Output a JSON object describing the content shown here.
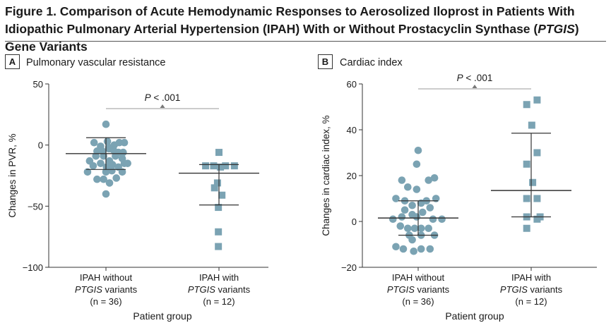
{
  "figure": {
    "title_part1": "Figure 1. Comparison of Acute Hemodynamic Responses to Aerosolized Iloprost in Patients With Idiopathic Pulmonary Arterial Hypertension (IPAH) With or Without Prostacyclin Synthase (",
    "title_italic": "PTGIS",
    "title_part2": ") Gene Variants"
  },
  "chart_data": [
    {
      "panel_letter": "A",
      "type": "scatter",
      "title": "Pulmonary vascular resistance",
      "ylabel": "Changes in PVR, %",
      "xlabel": "Patient group",
      "ylim": [
        -100,
        50
      ],
      "yticks": [
        50,
        0,
        -50,
        -100
      ],
      "ytick_labels": [
        "50",
        "0",
        "−50",
        "−100"
      ],
      "groups": [
        {
          "label_line1": "IPAH without",
          "label_italic": "PTGIS",
          "label_rest": " variants",
          "label_n": "(n = 36)"
        },
        {
          "label_line1": "IPAH with",
          "label_italic": "PTGIS",
          "label_rest": " variants",
          "label_n": "(n = 12)"
        }
      ],
      "significance": {
        "p_italic": "P",
        "p_text": " < .001"
      },
      "series": [
        {
          "marker": "circle",
          "points": [
            {
              "offset": 0,
              "y": 17
            },
            {
              "offset": -0.4,
              "y": 2
            },
            {
              "offset": -0.18,
              "y": -1
            },
            {
              "offset": 0.05,
              "y": 3
            },
            {
              "offset": 0.28,
              "y": 0
            },
            {
              "offset": 0.45,
              "y": 2
            },
            {
              "offset": 0.62,
              "y": 2
            },
            {
              "offset": -0.3,
              "y": -5
            },
            {
              "offset": -0.12,
              "y": -5
            },
            {
              "offset": 0.1,
              "y": -3
            },
            {
              "offset": 0.25,
              "y": -4
            },
            {
              "offset": 0.42,
              "y": -6
            },
            {
              "offset": 0.58,
              "y": -6
            },
            {
              "offset": -0.55,
              "y": -13
            },
            {
              "offset": -0.34,
              "y": -9
            },
            {
              "offset": -0.08,
              "y": -9
            },
            {
              "offset": 0.12,
              "y": -13
            },
            {
              "offset": 0.32,
              "y": -9
            },
            {
              "offset": 0.55,
              "y": -11
            },
            {
              "offset": 0.73,
              "y": -15
            },
            {
              "offset": -0.43,
              "y": -17
            },
            {
              "offset": -0.18,
              "y": -15
            },
            {
              "offset": 0.02,
              "y": -18
            },
            {
              "offset": 0.22,
              "y": -16
            },
            {
              "offset": 0.42,
              "y": -18
            },
            {
              "offset": 0.62,
              "y": -15
            },
            {
              "offset": -0.62,
              "y": -22
            },
            {
              "offset": 0.0,
              "y": -22
            },
            {
              "offset": 0.2,
              "y": -21
            },
            {
              "offset": 0.55,
              "y": -22
            },
            {
              "offset": -0.3,
              "y": -28
            },
            {
              "offset": -0.08,
              "y": -28
            },
            {
              "offset": 0.12,
              "y": -31
            },
            {
              "offset": 0.35,
              "y": -27
            },
            {
              "offset": 0.0,
              "y": -40
            },
            {
              "offset": 0.1,
              "y": -2
            }
          ],
          "mean": -7,
          "sd_low": -20,
          "sd_high": 6
        },
        {
          "marker": "square",
          "points": [
            {
              "offset": 0.0,
              "y": -6
            },
            {
              "offset": -0.45,
              "y": -17
            },
            {
              "offset": -0.18,
              "y": -17
            },
            {
              "offset": 0.05,
              "y": -18
            },
            {
              "offset": 0.22,
              "y": -17
            },
            {
              "offset": 0.52,
              "y": -17
            },
            {
              "offset": -0.15,
              "y": -35
            },
            {
              "offset": 0.1,
              "y": -41
            },
            {
              "offset": -0.05,
              "y": -31
            },
            {
              "offset": -0.02,
              "y": -51
            },
            {
              "offset": -0.02,
              "y": -71
            },
            {
              "offset": -0.02,
              "y": -83
            }
          ],
          "mean": -23,
          "sd_low": -49,
          "sd_high": -16
        }
      ]
    },
    {
      "panel_letter": "B",
      "type": "scatter",
      "title": "Cardiac index",
      "ylabel": "Changes in cardiac index, %",
      "xlabel": "Patient group",
      "ylim": [
        -20,
        60
      ],
      "yticks": [
        60,
        40,
        20,
        0,
        -20
      ],
      "ytick_labels": [
        "60",
        "40",
        "20",
        "0",
        "−20"
      ],
      "groups": [
        {
          "label_line1": "IPAH without",
          "label_italic": "PTGIS",
          "label_rest": " variants",
          "label_n": "(n = 36)"
        },
        {
          "label_line1": "IPAH with",
          "label_italic": "PTGIS",
          "label_rest": " variants",
          "label_n": "(n = 12)"
        }
      ],
      "significance": {
        "p_italic": "P",
        "p_text": " < .001"
      },
      "series": [
        {
          "marker": "circle",
          "points": [
            {
              "offset": 0.0,
              "y": 31
            },
            {
              "offset": -0.05,
              "y": 25
            },
            {
              "offset": -0.55,
              "y": 18
            },
            {
              "offset": 0.35,
              "y": 18
            },
            {
              "offset": 0.55,
              "y": 19
            },
            {
              "offset": -0.35,
              "y": 15
            },
            {
              "offset": -0.05,
              "y": 14
            },
            {
              "offset": -0.75,
              "y": 10
            },
            {
              "offset": -0.45,
              "y": 9
            },
            {
              "offset": -0.2,
              "y": 7
            },
            {
              "offset": 0.1,
              "y": 8
            },
            {
              "offset": 0.28,
              "y": 9
            },
            {
              "offset": 0.6,
              "y": 10
            },
            {
              "offset": -0.45,
              "y": 5
            },
            {
              "offset": -0.2,
              "y": 3
            },
            {
              "offset": 0.15,
              "y": 4
            },
            {
              "offset": 0.4,
              "y": 6
            },
            {
              "offset": -0.85,
              "y": 1
            },
            {
              "offset": -0.55,
              "y": 2
            },
            {
              "offset": -0.05,
              "y": 2
            },
            {
              "offset": 0.5,
              "y": 1
            },
            {
              "offset": 0.8,
              "y": 1
            },
            {
              "offset": -0.6,
              "y": -2
            },
            {
              "offset": -0.35,
              "y": -3
            },
            {
              "offset": -0.12,
              "y": -3
            },
            {
              "offset": 0.1,
              "y": -3
            },
            {
              "offset": 0.35,
              "y": -3
            },
            {
              "offset": -0.3,
              "y": -6
            },
            {
              "offset": 0.1,
              "y": -6
            },
            {
              "offset": 0.55,
              "y": -6
            },
            {
              "offset": -0.2,
              "y": -8
            },
            {
              "offset": -0.75,
              "y": -11
            },
            {
              "offset": -0.5,
              "y": -12
            },
            {
              "offset": -0.15,
              "y": -13
            },
            {
              "offset": 0.1,
              "y": -12
            },
            {
              "offset": 0.4,
              "y": -12
            }
          ],
          "mean": 1.5,
          "sd_low": -6,
          "sd_high": 9
        },
        {
          "marker": "square",
          "points": [
            {
              "offset": 0.2,
              "y": 53
            },
            {
              "offset": -0.15,
              "y": 51
            },
            {
              "offset": 0.02,
              "y": 42
            },
            {
              "offset": 0.2,
              "y": 30
            },
            {
              "offset": -0.15,
              "y": 25
            },
            {
              "offset": 0.05,
              "y": 17
            },
            {
              "offset": -0.15,
              "y": 10
            },
            {
              "offset": 0.2,
              "y": 10
            },
            {
              "offset": -0.15,
              "y": 2
            },
            {
              "offset": 0.2,
              "y": 1
            },
            {
              "offset": 0.3,
              "y": 2
            },
            {
              "offset": -0.15,
              "y": -3
            }
          ],
          "mean": 13.5,
          "sd_low": 2,
          "sd_high": 38.5
        }
      ]
    }
  ],
  "colors": {
    "marker": "#7ba3b3",
    "mean_line": "#333333",
    "bracket": "#999999",
    "axis": "#333333"
  }
}
